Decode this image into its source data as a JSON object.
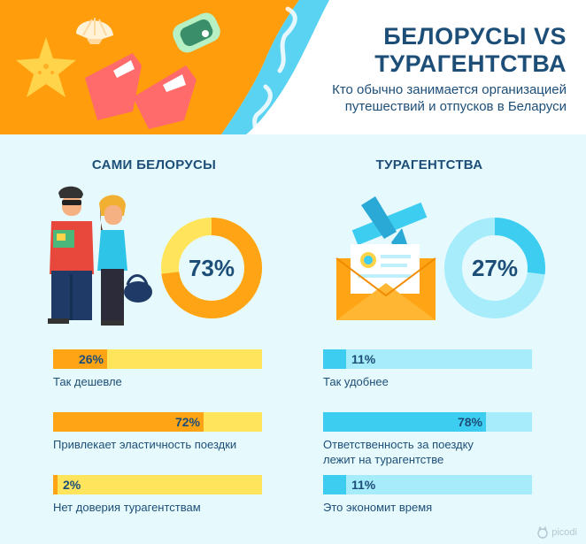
{
  "header": {
    "title_line1": "БЕЛОРУСЫ VS",
    "title_line2": "ТУРАГЕНТСТВА",
    "subtitle_line1": "Кто обычно занимается организацией",
    "subtitle_line2": "путешествий и отпусков в Беларуси"
  },
  "logo": {
    "text": "picodi",
    "icon": "picodi-cat-icon"
  },
  "colors": {
    "orange": "#ffa414",
    "yellow": "#ffe45c",
    "cyan": "#3dcdf1",
    "light_cyan": "#a7ecfb",
    "navy": "#1d4e78"
  },
  "chart_data": [
    {
      "type": "pie",
      "title": "САМИ БЕЛОРУСЫ",
      "values": [
        73,
        27
      ],
      "value_label": "73%",
      "colors": [
        "#ffa414",
        "#ffe45c"
      ]
    },
    {
      "type": "bar",
      "title": "САМИ БЕЛОРУСЫ",
      "categories": [
        "Так дешевле",
        "Привлекает эластичность поездки",
        "Нет доверия турагентствам"
      ],
      "values": [
        26,
        72,
        2
      ],
      "value_labels": [
        "26%",
        "72%",
        "2%"
      ],
      "ylim": [
        0,
        100
      ]
    },
    {
      "type": "pie",
      "title": "ТУРАГЕНТСТВА",
      "values": [
        27,
        73
      ],
      "value_label": "27%",
      "colors": [
        "#3dcdf1",
        "#a7ecfb"
      ]
    },
    {
      "type": "bar",
      "title": "ТУРАГЕНТСТВА",
      "categories": [
        "Так удобнее",
        "Ответственность за поездку лежит на турагентстве",
        "Это экономит время"
      ],
      "categories_display": [
        [
          "Так удобнее"
        ],
        [
          "Ответственность за поездку",
          "лежит на турагентстве"
        ],
        [
          "Это экономит время"
        ]
      ],
      "values": [
        11,
        78,
        11
      ],
      "value_labels": [
        "11%",
        "78%",
        "11%"
      ],
      "ylim": [
        0,
        100
      ]
    }
  ]
}
